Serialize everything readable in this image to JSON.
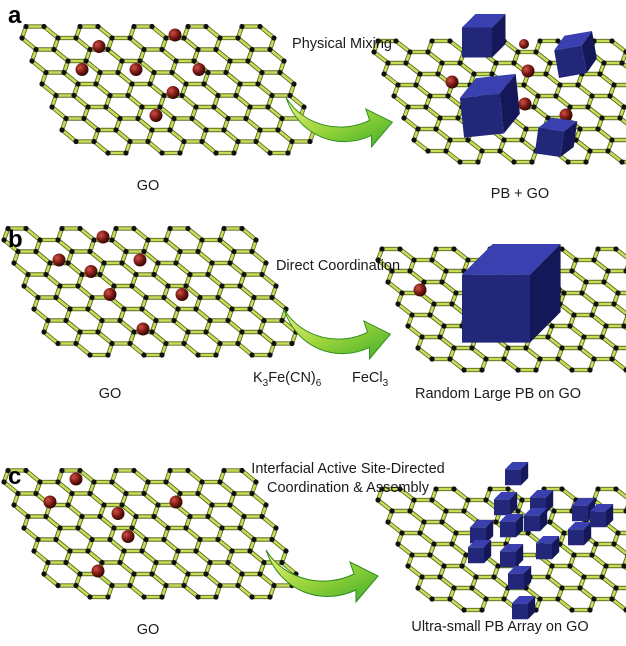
{
  "panels": [
    {
      "letter": "a",
      "process": [
        "Physical Mixing"
      ],
      "left_label": "GO",
      "right_label": "PB + GO"
    },
    {
      "letter": "b",
      "process": [
        "Direct Coordination"
      ],
      "reagents": [
        {
          "base": "K",
          "sub": "3",
          "mid": "Fe(CN)",
          "sub2": "6"
        },
        {
          "base": "FeCl",
          "sub": "3"
        }
      ],
      "left_label": "GO",
      "right_label": "Random Large PB on GO"
    },
    {
      "letter": "c",
      "process": [
        "Interfacial Active Site-Directed",
        "Coordination & Assembly"
      ],
      "left_label": "GO",
      "right_label": "Ultra-small PB Array on GO"
    }
  ],
  "colors": {
    "bond": "#c8dc5a",
    "atom": "#111111",
    "site": "#7a1a12",
    "cube": "#2a2f8a",
    "arrow": "#3fae2a"
  }
}
